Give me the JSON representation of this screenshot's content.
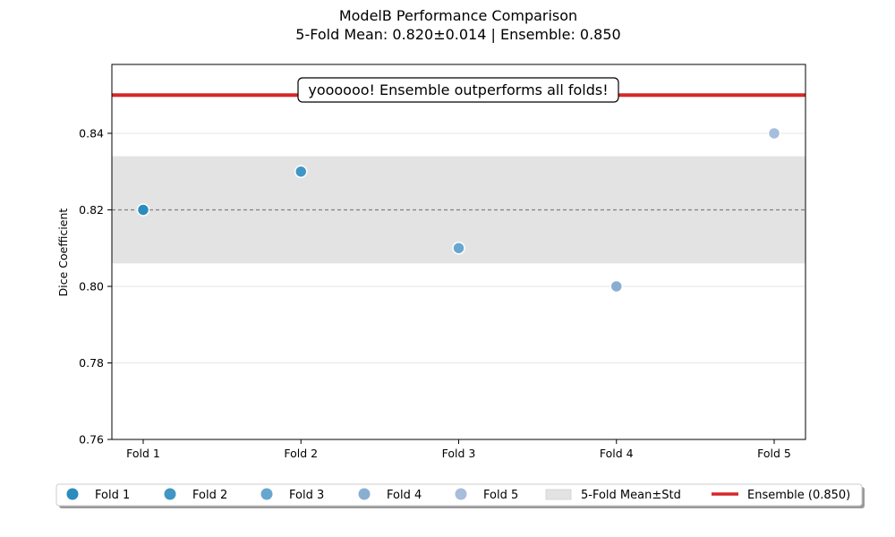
{
  "chart_data": {
    "type": "scatter",
    "title": "ModelB Performance Comparison",
    "subtitle": "5-Fold Mean: 0.820±0.014 | Ensemble: 0.850",
    "xlabel": "",
    "ylabel": "Dice Coefficient",
    "categories": [
      "Fold 1",
      "Fold 2",
      "Fold 3",
      "Fold 4",
      "Fold 5"
    ],
    "ylim": [
      0.76,
      0.858
    ],
    "yticks": [
      "0.76",
      "0.78",
      "0.80",
      "0.82",
      "0.84"
    ],
    "ytick_values": [
      0.76,
      0.78,
      0.8,
      0.82,
      0.84
    ],
    "grid": "horizontal",
    "series": [
      {
        "name": "Fold 1",
        "values": [
          0.82
        ],
        "color": "#2b8cbe"
      },
      {
        "name": "Fold 2",
        "values": [
          0.83
        ],
        "color": "#4196c6"
      },
      {
        "name": "Fold 3",
        "values": [
          0.81
        ],
        "color": "#67a7cf"
      },
      {
        "name": "Fold 4",
        "values": [
          0.8
        ],
        "color": "#89aed1"
      },
      {
        "name": "Fold 5",
        "values": [
          0.84
        ],
        "color": "#a6bddb"
      }
    ],
    "mean": 0.82,
    "std": 0.014,
    "ensemble": 0.85,
    "band_label": "5-Fold Mean±Std",
    "ensemble_label": "Ensemble (0.850)",
    "band_color": "#e3e3e3",
    "ensemble_color": "#d62728",
    "mean_line_color": "#808080",
    "annotation": "yoooooo! Ensemble outperforms all folds!",
    "legend_position": "bottom-center"
  }
}
